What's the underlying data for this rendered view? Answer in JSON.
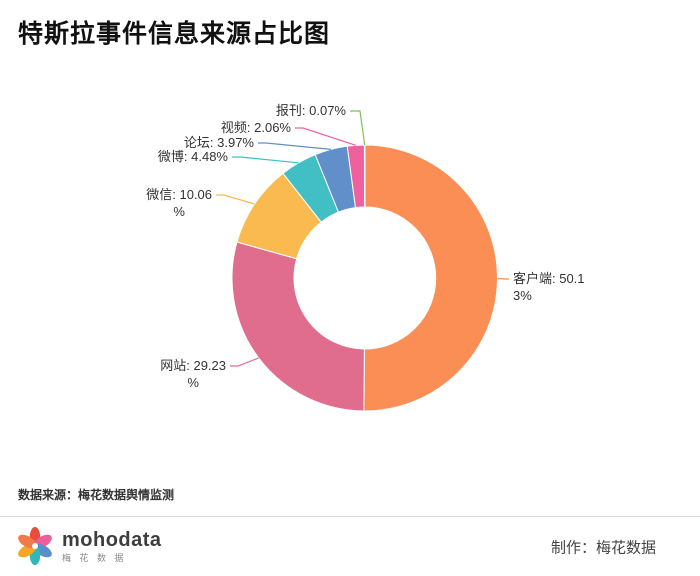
{
  "title": "特斯拉事件信息来源占比图",
  "source_note": "数据来源：梅花数据舆情监测",
  "footer": {
    "brand": "mohodata",
    "brand_sub": "梅 花 数 据",
    "credit": "制作：梅花数据"
  },
  "chart_data": {
    "type": "pie",
    "subtype": "donut",
    "title": "特斯拉事件信息来源占比图",
    "unit": "%",
    "label_format": "{label}: {value}%",
    "direction": "clockwise",
    "start_angle_deg": 0,
    "slices": [
      {
        "label": "客户端",
        "value": 50.13,
        "color": "#fa8e55"
      },
      {
        "label": "网站",
        "value": 29.23,
        "color": "#e06c8e"
      },
      {
        "label": "微信",
        "value": 10.06,
        "color": "#fbba4f"
      },
      {
        "label": "微博",
        "value": 4.48,
        "color": "#41bfc5"
      },
      {
        "label": "论坛",
        "value": 3.97,
        "color": "#608fc9"
      },
      {
        "label": "视频",
        "value": 2.06,
        "color": "#f0609f"
      },
      {
        "label": "报刊",
        "value": 0.07,
        "color": "#82be5a"
      }
    ]
  }
}
